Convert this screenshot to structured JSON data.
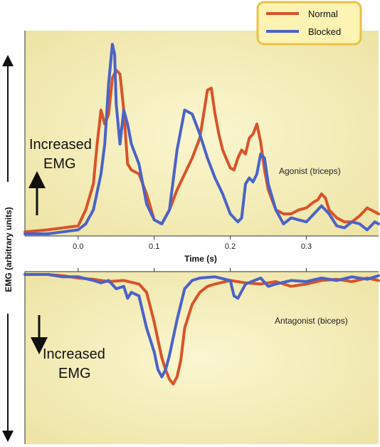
{
  "colors": {
    "normal": "#d9532a",
    "blocked": "#4a63c6",
    "panel_center": "#fbf6d0",
    "panel_edge": "#ede4a4",
    "legend_fill": "#fdf3b2",
    "legend_border": "#e9c247"
  },
  "chart_data": {
    "type": "line",
    "xlabel": "Time (s)",
    "ylabel": "EMG (arbitrary units)",
    "x_ticks": [
      "0.0",
      "0.1",
      "0.2",
      "0.3"
    ],
    "legend": {
      "position": "top-right",
      "entries": [
        "Normal",
        "Blocked"
      ]
    },
    "panels": [
      {
        "id": "agonist",
        "label": "Agonist (triceps)",
        "direction": "up",
        "arrow_label": [
          "Increased",
          "EMG"
        ],
        "xlim": [
          -0.07,
          0.395
        ],
        "ylim": [
          0,
          1
        ],
        "series": [
          {
            "name": "Normal",
            "x": [
              -0.07,
              -0.04,
              -0.02,
              0.0,
              0.01,
              0.02,
              0.025,
              0.03,
              0.035,
              0.04,
              0.045,
              0.05,
              0.055,
              0.06,
              0.065,
              0.07,
              0.08,
              0.09,
              0.1,
              0.11,
              0.12,
              0.13,
              0.14,
              0.15,
              0.16,
              0.165,
              0.17,
              0.175,
              0.18,
              0.185,
              0.19,
              0.2,
              0.205,
              0.21,
              0.215,
              0.22,
              0.225,
              0.23,
              0.235,
              0.24,
              0.245,
              0.25,
              0.26,
              0.27,
              0.28,
              0.29,
              0.3,
              0.31,
              0.315,
              0.32,
              0.325,
              0.33,
              0.34,
              0.35,
              0.36,
              0.37,
              0.38,
              0.39,
              0.395
            ],
            "y": [
              0.01,
              0.02,
              0.03,
              0.04,
              0.12,
              0.25,
              0.45,
              0.62,
              0.55,
              0.6,
              0.78,
              0.82,
              0.8,
              0.62,
              0.35,
              0.32,
              0.3,
              0.2,
              0.07,
              0.05,
              0.12,
              0.22,
              0.3,
              0.38,
              0.48,
              0.6,
              0.72,
              0.73,
              0.6,
              0.5,
              0.42,
              0.33,
              0.32,
              0.38,
              0.42,
              0.4,
              0.48,
              0.5,
              0.55,
              0.46,
              0.32,
              0.22,
              0.12,
              0.1,
              0.1,
              0.12,
              0.13,
              0.16,
              0.17,
              0.2,
              0.18,
              0.12,
              0.08,
              0.06,
              0.06,
              0.09,
              0.13,
              0.11,
              0.1
            ]
          },
          {
            "name": "Blocked",
            "x": [
              -0.07,
              -0.04,
              -0.02,
              0.0,
              0.01,
              0.02,
              0.03,
              0.035,
              0.04,
              0.045,
              0.048,
              0.05,
              0.055,
              0.06,
              0.065,
              0.07,
              0.08,
              0.09,
              0.1,
              0.11,
              0.12,
              0.13,
              0.14,
              0.15,
              0.16,
              0.17,
              0.18,
              0.19,
              0.2,
              0.21,
              0.215,
              0.22,
              0.225,
              0.23,
              0.235,
              0.24,
              0.245,
              0.25,
              0.26,
              0.27,
              0.28,
              0.29,
              0.3,
              0.31,
              0.32,
              0.33,
              0.34,
              0.35,
              0.36,
              0.37,
              0.38,
              0.39,
              0.395
            ],
            "y": [
              0.0,
              0.0,
              0.01,
              0.02,
              0.05,
              0.12,
              0.3,
              0.45,
              0.75,
              0.95,
              0.9,
              0.65,
              0.45,
              0.62,
              0.55,
              0.45,
              0.35,
              0.15,
              0.07,
              0.05,
              0.12,
              0.42,
              0.62,
              0.6,
              0.5,
              0.38,
              0.28,
              0.2,
              0.1,
              0.06,
              0.08,
              0.25,
              0.28,
              0.26,
              0.3,
              0.4,
              0.38,
              0.25,
              0.12,
              0.05,
              0.08,
              0.07,
              0.06,
              0.1,
              0.14,
              0.1,
              0.04,
              0.03,
              0.06,
              0.05,
              0.02,
              0.06,
              0.05
            ]
          }
        ]
      },
      {
        "id": "antagonist",
        "label": "Antagonist (biceps)",
        "direction": "down",
        "arrow_label": [
          "Increased",
          "EMG"
        ],
        "xlim": [
          -0.07,
          0.395
        ],
        "ylim": [
          0,
          1
        ],
        "series": [
          {
            "name": "Normal",
            "x": [
              -0.07,
              -0.04,
              -0.02,
              0.0,
              0.02,
              0.04,
              0.06,
              0.08,
              0.09,
              0.1,
              0.105,
              0.11,
              0.115,
              0.12,
              0.125,
              0.13,
              0.135,
              0.14,
              0.15,
              0.16,
              0.17,
              0.18,
              0.2,
              0.22,
              0.24,
              0.26,
              0.28,
              0.3,
              0.32,
              0.34,
              0.36,
              0.38,
              0.395
            ],
            "y": [
              0.0,
              0.0,
              0.01,
              0.03,
              0.04,
              0.06,
              0.05,
              0.08,
              0.15,
              0.4,
              0.55,
              0.7,
              0.8,
              0.88,
              0.92,
              0.86,
              0.72,
              0.45,
              0.25,
              0.15,
              0.1,
              0.08,
              0.05,
              0.07,
              0.08,
              0.06,
              0.1,
              0.08,
              0.05,
              0.04,
              0.06,
              0.03,
              0.05
            ]
          },
          {
            "name": "Blocked",
            "x": [
              -0.07,
              -0.04,
              -0.02,
              0.0,
              0.02,
              0.03,
              0.04,
              0.05,
              0.06,
              0.065,
              0.07,
              0.08,
              0.09,
              0.1,
              0.105,
              0.11,
              0.115,
              0.12,
              0.13,
              0.14,
              0.15,
              0.16,
              0.18,
              0.2,
              0.205,
              0.21,
              0.22,
              0.24,
              0.25,
              0.26,
              0.28,
              0.3,
              0.32,
              0.34,
              0.36,
              0.38,
              0.395
            ],
            "y": [
              0.0,
              0.0,
              0.02,
              0.02,
              0.05,
              0.07,
              0.05,
              0.12,
              0.1,
              0.2,
              0.15,
              0.18,
              0.45,
              0.65,
              0.8,
              0.86,
              0.8,
              0.68,
              0.38,
              0.12,
              0.05,
              0.03,
              0.02,
              0.05,
              0.18,
              0.2,
              0.08,
              0.03,
              0.1,
              0.08,
              0.05,
              0.06,
              0.03,
              0.05,
              0.02,
              0.04,
              0.01
            ]
          }
        ]
      }
    ]
  }
}
